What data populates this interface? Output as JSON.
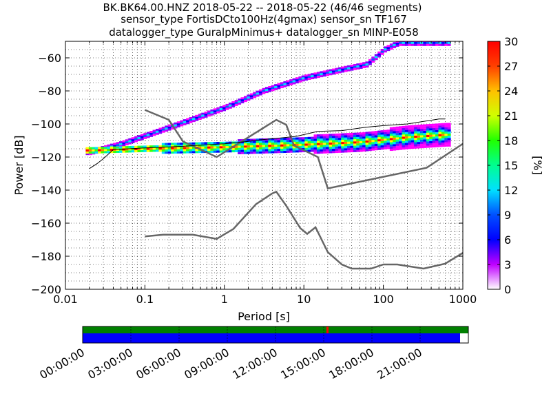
{
  "title": {
    "line1": "BK.BK64.00.HNZ   2018-05-22 -- 2018-05-22  (46/46 segments)",
    "line2": "sensor_type FortisDCto100Hz(4gmax) sensor_sn TF167",
    "line3": "datalogger_type GuralpMinimus+ datalogger_sn MINP-E058"
  },
  "colorbar": {
    "label": "[%]",
    "ticks": [
      "0",
      "3",
      "6",
      "9",
      "12",
      "15",
      "18",
      "21",
      "24",
      "27",
      "30"
    ]
  },
  "timeline": {
    "labels": [
      "00:00:00",
      "03:00:00",
      "06:00:00",
      "09:00:00",
      "12:00:00",
      "15:00:00",
      "18:00:00",
      "21:00:00"
    ],
    "colors": {
      "data": "#0000ff",
      "gaps_ok": "#008000",
      "overlap": "#ff0000"
    }
  },
  "chart_data": {
    "type": "heatmap",
    "xlabel": "Period [s]",
    "ylabel": "Power [dB]",
    "xscale": "log",
    "xlim": [
      0.01,
      1000
    ],
    "ylim": [
      -200,
      -50
    ],
    "x_tick_labels": [
      "0.01",
      "0.1",
      "1",
      "10",
      "100",
      "1000"
    ],
    "y_tick_labels": [
      "-200",
      "-180",
      "-160",
      "-140",
      "-120",
      "-100",
      "-80",
      "-60"
    ],
    "grid": "dotted",
    "colormap_range_percent": [
      0,
      30
    ],
    "series": [
      {
        "kind": "reference",
        "color": "#666666",
        "x": [
          0.1,
          0.2,
          0.3,
          0.8,
          4.5,
          6,
          7.5,
          15,
          20,
          350,
          1000
        ],
        "y": [
          -91.5,
          -97.5,
          -110.5,
          -120,
          -97.5,
          -100.5,
          -113,
          -120,
          -139,
          -126.5,
          -112
        ]
      },
      {
        "kind": "reference",
        "color": "#666666",
        "x": [
          0.1,
          0.17,
          0.4,
          0.8,
          1.3,
          2.5,
          4,
          4.5,
          6,
          9,
          11,
          14,
          20,
          30,
          40,
          70,
          100,
          150,
          320,
          600,
          1000
        ],
        "y": [
          -168,
          -167,
          -167,
          -169.5,
          -163.5,
          -148.5,
          -142,
          -141,
          -149.5,
          -163,
          -166.5,
          -162.5,
          -177.5,
          -185,
          -187.5,
          -187.5,
          -185,
          -185,
          -187.5,
          -184.5,
          -178
        ]
      },
      {
        "kind": "mode",
        "color": "#000000",
        "x": [
          0.02,
          0.025,
          0.03,
          0.04,
          0.1,
          0.3,
          1,
          2,
          3,
          5,
          8,
          15,
          30,
          60,
          100,
          200,
          500,
          600
        ],
        "y": [
          -127,
          -124,
          -121,
          -115.5,
          -114.5,
          -113.5,
          -112,
          -110.5,
          -109.5,
          -108.5,
          -107.5,
          -104.5,
          -104,
          -102,
          -101,
          -100,
          -97,
          -97
        ]
      },
      {
        "kind": "density_upper_branch",
        "x": [
          0.02,
          0.05,
          0.1,
          0.3,
          1,
          3,
          10,
          30,
          60,
          100,
          150,
          700
        ],
        "y": [
          -117,
          -112,
          -107,
          -99,
          -90,
          -80,
          -72,
          -67,
          -64,
          -55,
          -51,
          -51
        ]
      },
      {
        "kind": "density_flat_band",
        "x": [
          0.02,
          0.1,
          1,
          5,
          10,
          50,
          100,
          200,
          600
        ],
        "y": [
          -116,
          -115,
          -114,
          -113,
          -112.5,
          -111,
          -109.5,
          -108,
          -106.5
        ]
      }
    ]
  }
}
